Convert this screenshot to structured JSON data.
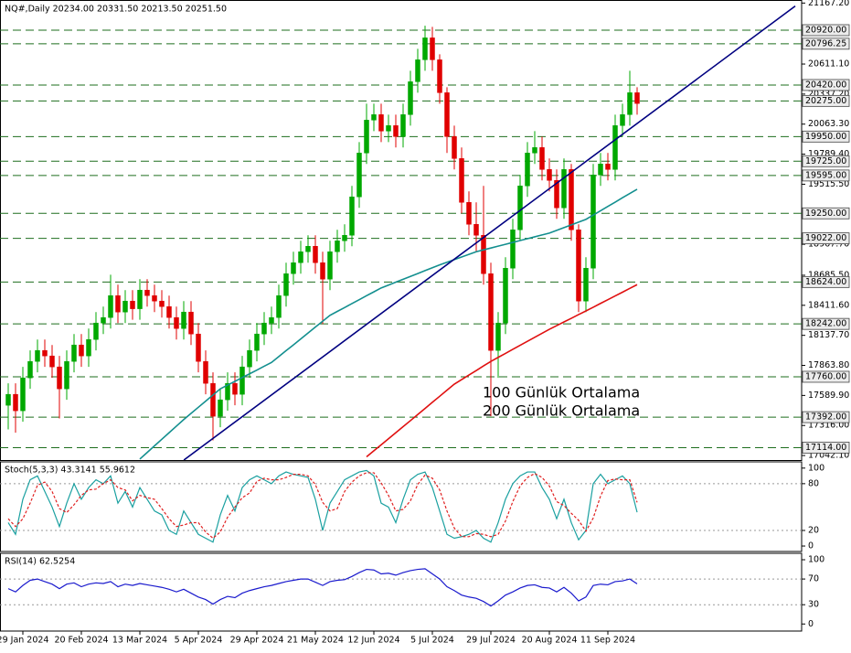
{
  "chart_data": [
    {
      "type": "candlestick",
      "title": "NQ#,Daily  20234.00 20331.50 20213.50 20251.50",
      "categories": [
        null,
        null,
        "29 Jan 2024",
        null,
        null,
        null,
        null,
        null,
        null,
        null,
        "20 Feb 2024",
        null,
        null,
        null,
        null,
        null,
        null,
        null,
        "13 Mar 2024",
        null,
        null,
        null,
        null,
        null,
        null,
        null,
        "5 Apr 2024",
        null,
        null,
        null,
        null,
        null,
        null,
        null,
        "29 Apr 2024",
        null,
        null,
        null,
        null,
        null,
        null,
        null,
        "21 May 2024",
        null,
        null,
        null,
        null,
        null,
        null,
        null,
        "12 Jun 2024",
        null,
        null,
        null,
        null,
        null,
        null,
        null,
        "5 Jul 2024",
        null,
        null,
        null,
        null,
        null,
        null,
        null,
        "29 Jul 2024",
        null,
        null,
        null,
        null,
        null,
        null,
        null,
        "20 Aug 2024",
        null,
        null,
        null,
        null,
        null,
        null,
        null,
        "11 Sep 2024",
        null,
        null,
        null,
        null
      ],
      "open": [
        17500,
        17600,
        17450,
        17750,
        17900,
        18000,
        17950,
        17850,
        17650,
        17900,
        18050,
        17950,
        18100,
        18250,
        18300,
        18500,
        18350,
        18450,
        18380,
        18550,
        18500,
        18450,
        18400,
        18300,
        18200,
        18350,
        18150,
        17900,
        17700,
        17400,
        17550,
        17700,
        17600,
        17850,
        18000,
        18150,
        18250,
        18300,
        18500,
        18700,
        18800,
        18900,
        18950,
        18800,
        18650,
        18900,
        19000,
        19050,
        19400,
        19800,
        20100,
        20150,
        20000,
        20050,
        19950,
        20150,
        20450,
        20650,
        20850,
        20650,
        20350,
        19950,
        19750,
        19350,
        19150,
        19050,
        18700,
        18000,
        18250,
        18750,
        19100,
        19500,
        19800,
        19850,
        19650,
        19550,
        19300,
        19650,
        19100,
        18450,
        18750,
        19600,
        19700,
        19650,
        20050,
        20150,
        20350
      ],
      "high": [
        17700,
        17700,
        17850,
        18000,
        18100,
        18100,
        18050,
        17950,
        18000,
        18150,
        18150,
        18200,
        18350,
        18400,
        18690,
        18600,
        18550,
        18550,
        18650,
        18650,
        18600,
        18550,
        18500,
        18400,
        18450,
        18450,
        18250,
        18000,
        17800,
        17650,
        17800,
        17800,
        17950,
        18100,
        18250,
        18350,
        18400,
        18600,
        18800,
        18900,
        19000,
        19050,
        19050,
        18900,
        19000,
        19100,
        19150,
        19500,
        19900,
        20250,
        20250,
        20250,
        20150,
        20150,
        20250,
        20550,
        20750,
        20960,
        20950,
        20700,
        20400,
        20050,
        19850,
        19450,
        19350,
        19500,
        18800,
        18350,
        18850,
        19200,
        19600,
        19900,
        20000,
        19950,
        19750,
        19650,
        19750,
        19700,
        19150,
        18850,
        19700,
        19800,
        19800,
        20150,
        20250,
        20550,
        20400
      ],
      "low": [
        17280,
        17250,
        17350,
        17650,
        17800,
        17850,
        17750,
        17380,
        17550,
        17800,
        17850,
        17850,
        18000,
        18150,
        18200,
        18250,
        18250,
        18280,
        18280,
        18400,
        18350,
        18300,
        18200,
        18100,
        18100,
        18050,
        17800,
        17600,
        17180,
        17300,
        17450,
        17500,
        17500,
        17750,
        17900,
        18050,
        18150,
        18200,
        18400,
        18600,
        18700,
        18800,
        18700,
        18240,
        18550,
        18800,
        18900,
        18950,
        19300,
        19700,
        20000,
        19900,
        19900,
        19850,
        19850,
        20050,
        20350,
        20550,
        20550,
        20250,
        19800,
        19650,
        19250,
        19050,
        18900,
        18600,
        17400,
        17750,
        18150,
        18650,
        19000,
        19400,
        19700,
        19550,
        19450,
        19200,
        19200,
        19000,
        18350,
        18350,
        18650,
        19500,
        19550,
        19550,
        19950,
        20050,
        20150
      ],
      "close": [
        17600,
        17450,
        17750,
        17900,
        18000,
        17950,
        17850,
        17650,
        17900,
        18050,
        17950,
        18100,
        18250,
        18300,
        18500,
        18350,
        18450,
        18380,
        18550,
        18500,
        18450,
        18400,
        18300,
        18200,
        18350,
        18150,
        17900,
        17700,
        17400,
        17550,
        17700,
        17600,
        17850,
        18000,
        18150,
        18250,
        18300,
        18500,
        18700,
        18800,
        18900,
        18950,
        18800,
        18650,
        18900,
        19000,
        19050,
        19400,
        19800,
        20100,
        20150,
        20000,
        20050,
        19950,
        20150,
        20450,
        20650,
        20850,
        20650,
        20350,
        19950,
        19750,
        19350,
        19150,
        19050,
        18700,
        18000,
        18250,
        18750,
        19100,
        19500,
        19800,
        19850,
        19650,
        19550,
        19300,
        19650,
        19100,
        18450,
        18750,
        19600,
        19700,
        19650,
        20050,
        20150,
        20350,
        20251.5
      ],
      "up_color": "#00a800",
      "down_color": "#e00000",
      "series": [
        {
          "name": "100 Günlük Ortalama",
          "color": "#138f8f",
          "values": [
            null,
            null,
            null,
            null,
            null,
            null,
            null,
            null,
            null,
            null,
            null,
            null,
            null,
            null,
            null,
            null,
            null,
            null,
            17010,
            17070,
            17130,
            17190,
            17250,
            17310,
            17370,
            17426,
            17482,
            17538,
            17594,
            17650,
            17684,
            17718,
            17753,
            17787,
            17821,
            17856,
            17890,
            17944,
            17998,
            18051,
            18105,
            18159,
            18213,
            18266,
            18320,
            18356,
            18391,
            18427,
            18463,
            18499,
            18534,
            18570,
            18596,
            18623,
            18649,
            18675,
            18701,
            18728,
            18754,
            18780,
            18804,
            18828,
            18852,
            18876,
            18900,
            18917,
            18934,
            18951,
            18968,
            18985,
            19002,
            19019,
            19036,
            19053,
            19070,
            19095,
            19120,
            19145,
            19170,
            19195,
            19234,
            19274,
            19313,
            19352,
            19392,
            19431,
            19470
          ]
        },
        {
          "name": "200 Günlük Ortalama",
          "color": "#e01010",
          "values": [
            null,
            null,
            null,
            null,
            null,
            null,
            null,
            null,
            null,
            null,
            null,
            null,
            null,
            null,
            null,
            null,
            null,
            null,
            null,
            null,
            null,
            null,
            null,
            null,
            null,
            null,
            null,
            null,
            null,
            null,
            null,
            null,
            null,
            null,
            null,
            null,
            null,
            null,
            null,
            null,
            null,
            null,
            null,
            null,
            null,
            null,
            null,
            null,
            null,
            17030,
            17085,
            17140,
            17195,
            17250,
            17305,
            17360,
            17416,
            17471,
            17527,
            17582,
            17638,
            17693,
            17734,
            17776,
            17817,
            17859,
            17900,
            17937,
            17973,
            18010,
            18047,
            18083,
            18120,
            18156,
            18193,
            18226,
            18260,
            18293,
            18327,
            18360,
            18394,
            18429,
            18463,
            18497,
            18531,
            18566,
            18600
          ]
        }
      ],
      "trendline": {
        "color": "#000080",
        "values": [
          15812,
          20069
        ]
      },
      "level_color": "#1e6e1e",
      "levels": [
        {
          "value": 20920,
          "label": "20920.00"
        },
        {
          "value": 20796.25,
          "label": "20796.25"
        },
        {
          "value": 20420,
          "label": "20420.00"
        },
        {
          "value": 20275,
          "label": "20275.00"
        },
        {
          "value": 19950,
          "label": "19950.00"
        },
        {
          "value": 19725,
          "label": "19725.00"
        },
        {
          "value": 19595,
          "label": "19595.00"
        },
        {
          "value": 19250,
          "label": "19250.00"
        },
        {
          "value": 19022,
          "label": "19022.00"
        },
        {
          "value": 18624,
          "label": "18624.00"
        },
        {
          "value": 18242,
          "label": "18242.00"
        },
        {
          "value": 17760,
          "label": "17760.00"
        },
        {
          "value": 17392,
          "label": "17392.00"
        },
        {
          "value": 17114,
          "label": "17114.00"
        }
      ],
      "ylim": [
        17001,
        21195
      ],
      "yticks": [
        {
          "value": 21167.2,
          "label": "21167.20"
        },
        {
          "value": 20611.1,
          "label": "20611.10"
        },
        {
          "value": 20337.2,
          "label": "20337.20"
        },
        {
          "value": 20063.3,
          "label": "20063.30"
        },
        {
          "value": 19789.4,
          "label": "19789.40"
        },
        {
          "value": 19515.5,
          "label": "19515.50"
        },
        {
          "value": 18967.7,
          "label": "18967.70"
        },
        {
          "value": 18685.5,
          "label": "18685.50"
        },
        {
          "value": 18411.6,
          "label": "18411.60"
        },
        {
          "value": 18137.7,
          "label": "18137.70"
        },
        {
          "value": 17863.8,
          "label": "17863.80"
        },
        {
          "value": 17589.9,
          "label": "17589.90"
        },
        {
          "value": 17316,
          "label": "17316.00"
        },
        {
          "value": 17042.1,
          "label": "17042.10"
        }
      ]
    },
    {
      "type": "line",
      "title": "Stoch(5,3,3) 43.3141 55.9612",
      "series": [
        {
          "color": "#1aa0a0",
          "line_style": "solid",
          "values": [
            30,
            15,
            60,
            85,
            90,
            70,
            50,
            25,
            55,
            80,
            60,
            75,
            85,
            80,
            90,
            55,
            70,
            50,
            75,
            60,
            45,
            40,
            20,
            15,
            45,
            30,
            15,
            10,
            5,
            40,
            65,
            45,
            75,
            85,
            90,
            85,
            80,
            90,
            95,
            92,
            90,
            88,
            60,
            20,
            55,
            70,
            85,
            90,
            95,
            97,
            90,
            55,
            50,
            30,
            60,
            85,
            92,
            95,
            75,
            45,
            15,
            10,
            12,
            15,
            20,
            10,
            5,
            30,
            60,
            80,
            90,
            95,
            95,
            75,
            60,
            35,
            60,
            30,
            8,
            20,
            80,
            92,
            80,
            85,
            90,
            80,
            43.3141
          ]
        },
        {
          "color": "#e02020",
          "line_style": "dashed",
          "values": [
            35,
            25,
            35,
            55,
            78,
            82,
            70,
            48,
            43,
            53,
            65,
            72,
            73,
            80,
            85,
            75,
            72,
            58,
            65,
            62,
            60,
            48,
            35,
            25,
            27,
            30,
            30,
            18,
            10,
            18,
            37,
            50,
            62,
            68,
            83,
            87,
            85,
            85,
            88,
            92,
            92,
            90,
            79,
            56,
            45,
            48,
            70,
            82,
            90,
            94,
            94,
            81,
            65,
            45,
            47,
            58,
            79,
            91,
            87,
            72,
            45,
            23,
            12,
            12,
            16,
            15,
            12,
            15,
            32,
            57,
            77,
            88,
            93,
            88,
            77,
            57,
            52,
            42,
            33,
            19,
            36,
            64,
            84,
            86,
            85,
            85,
            55.9612
          ]
        }
      ],
      "levels": [
        80,
        20
      ],
      "ylim": [
        -7,
        108
      ],
      "yticks": [
        100,
        80,
        20,
        0
      ]
    },
    {
      "type": "line",
      "title": "RSI(14) 62.5254",
      "series": [
        {
          "color": "#1a1acd",
          "line_style": "solid",
          "values": [
            55,
            50,
            60,
            68,
            70,
            66,
            62,
            55,
            62,
            64,
            58,
            62,
            64,
            63,
            66,
            58,
            62,
            60,
            63,
            61,
            59,
            57,
            54,
            50,
            54,
            48,
            42,
            38,
            31,
            38,
            43,
            41,
            48,
            52,
            55,
            58,
            60,
            63,
            66,
            68,
            70,
            70,
            65,
            60,
            66,
            68,
            69,
            74,
            80,
            85,
            84,
            78,
            79,
            76,
            80,
            83,
            85,
            86,
            78,
            70,
            58,
            52,
            45,
            42,
            40,
            35,
            28,
            36,
            45,
            50,
            56,
            60,
            61,
            57,
            56,
            50,
            57,
            48,
            36,
            42,
            60,
            62,
            61,
            66,
            67,
            70,
            62.5254
          ]
        }
      ],
      "levels": [
        70,
        30
      ],
      "ylim": [
        -11,
        110
      ],
      "yticks": [
        100,
        70,
        30,
        0
      ]
    }
  ]
}
